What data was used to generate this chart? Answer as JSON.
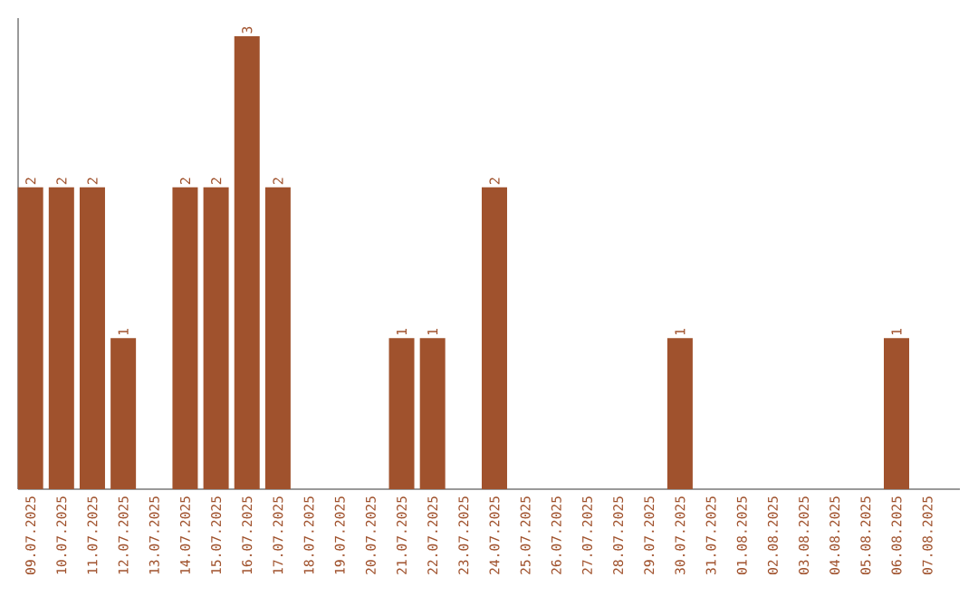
{
  "chart_data": {
    "type": "bar",
    "categories": [
      "09.07.2025",
      "10.07.2025",
      "11.07.2025",
      "12.07.2025",
      "13.07.2025",
      "14.07.2025",
      "15.07.2025",
      "16.07.2025",
      "17.07.2025",
      "18.07.2025",
      "19.07.2025",
      "20.07.2025",
      "21.07.2025",
      "22.07.2025",
      "23.07.2025",
      "24.07.2025",
      "25.07.2025",
      "26.07.2025",
      "27.07.2025",
      "28.07.2025",
      "29.07.2025",
      "30.07.2025",
      "31.07.2025",
      "01.08.2025",
      "02.08.2025",
      "03.08.2025",
      "04.08.2025",
      "05.08.2025",
      "06.08.2025",
      "07.08.2025"
    ],
    "values": [
      2,
      2,
      2,
      1,
      0,
      2,
      2,
      3,
      2,
      0,
      0,
      0,
      1,
      1,
      0,
      2,
      0,
      0,
      0,
      0,
      0,
      1,
      0,
      0,
      0,
      0,
      0,
      0,
      1,
      0
    ],
    "value_labels": [
      "2",
      "2",
      "2",
      "1",
      null,
      "2",
      "2",
      "3",
      "2",
      null,
      null,
      null,
      "1",
      "1",
      null,
      "2",
      null,
      null,
      null,
      null,
      null,
      "1",
      null,
      null,
      null,
      null,
      null,
      null,
      "1",
      null
    ],
    "color": "#a0522d"
  }
}
